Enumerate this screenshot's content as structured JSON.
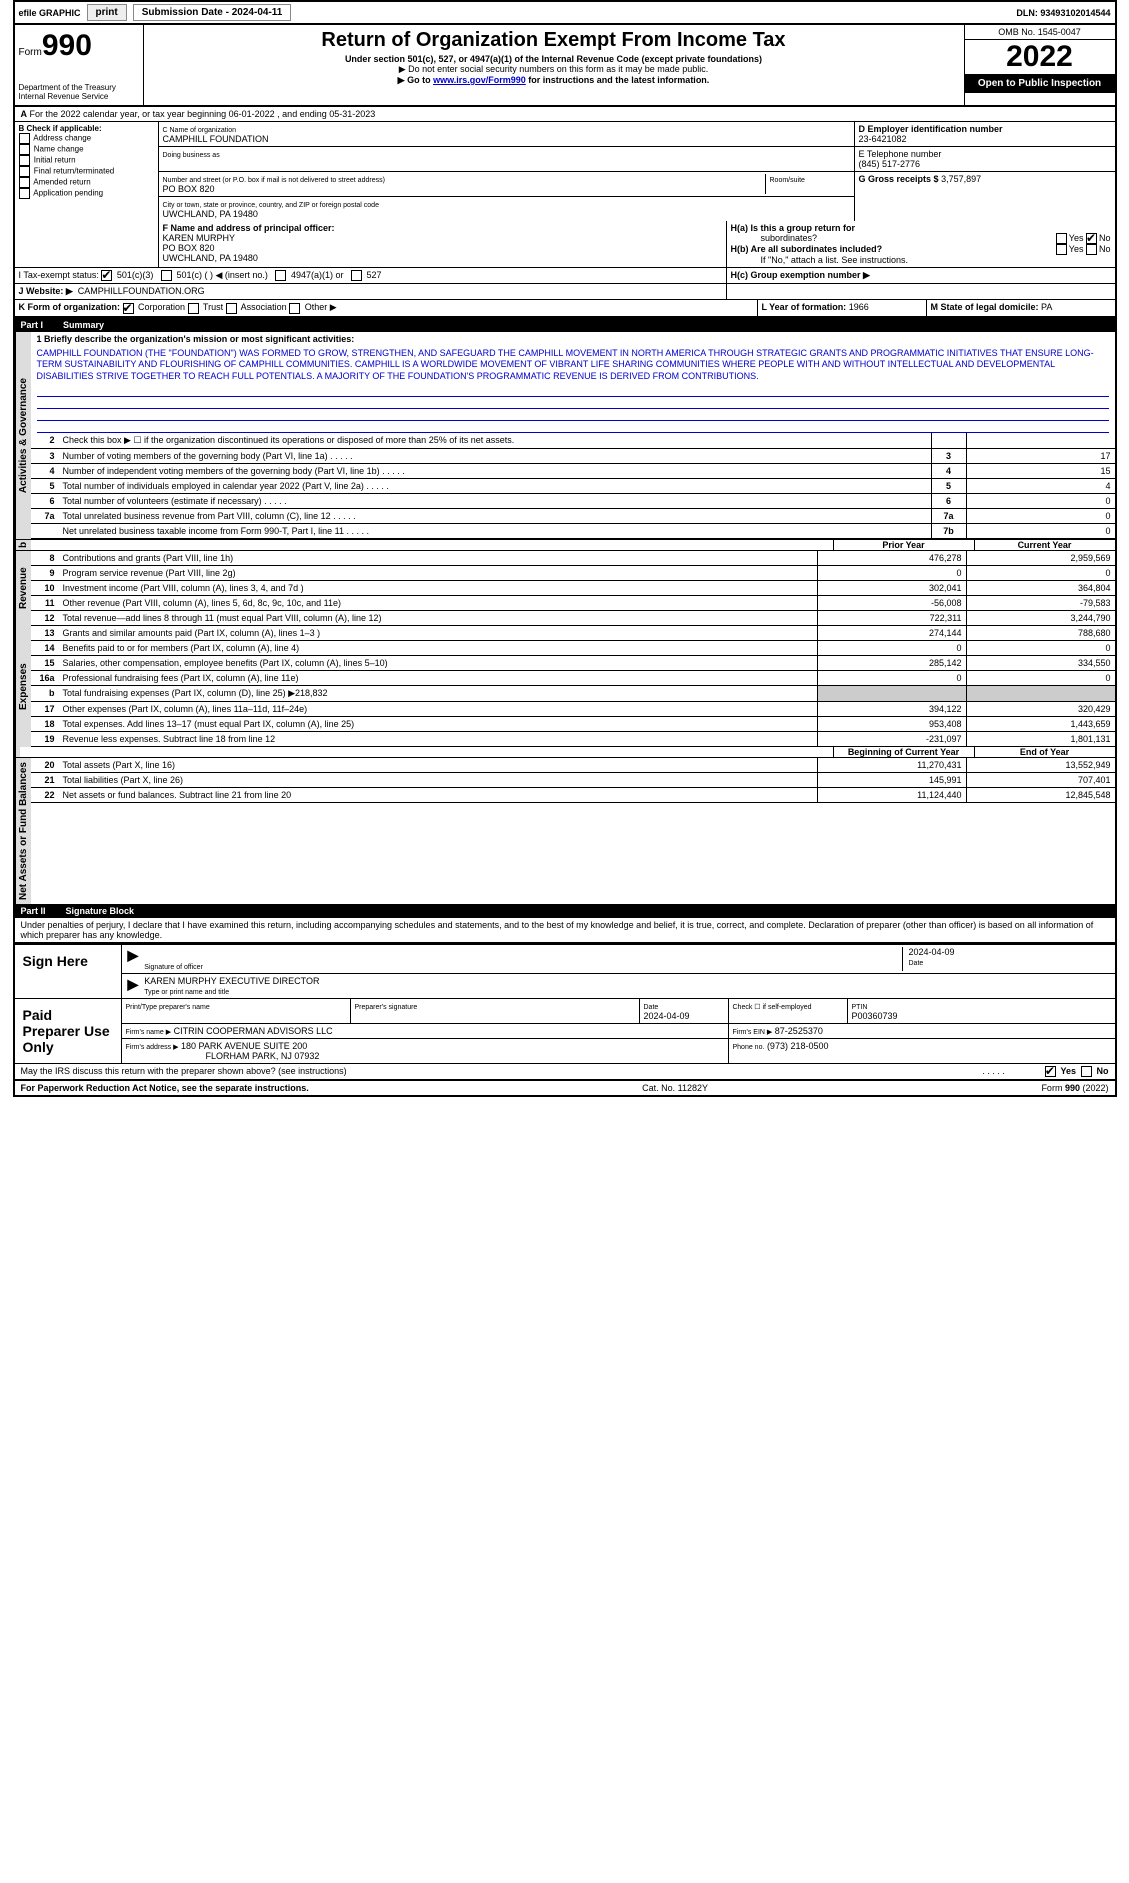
{
  "topbar": {
    "efile": "efile GRAPHIC",
    "print": "print",
    "subdate_label": "Submission Date - 2024-04-11",
    "dln": "DLN: 93493102014544"
  },
  "header": {
    "form_prefix": "Form",
    "form_number": "990",
    "dept": "Department of the Treasury",
    "irs": "Internal Revenue Service",
    "title": "Return of Organization Exempt From Income Tax",
    "subtitle": "Under section 501(c), 527, or 4947(a)(1) of the Internal Revenue Code (except private foundations)",
    "note1": "▶ Do not enter social security numbers on this form as it may be made public.",
    "note2_pre": "▶ Go to ",
    "note2_link": "www.irs.gov/Form990",
    "note2_post": " for instructions and the latest information.",
    "omb": "OMB No. 1545-0047",
    "year": "2022",
    "inspection": "Open to Public Inspection"
  },
  "sectionA": "For the 2022 calendar year, or tax year beginning 06-01-2022   , and ending 05-31-2023",
  "sectionB": {
    "label": "B Check if applicable:",
    "items": [
      "Address change",
      "Name change",
      "Initial return",
      "Final return/terminated",
      "Amended return",
      "Application pending"
    ]
  },
  "sectionC": {
    "name_lbl": "C Name of organization",
    "name": "CAMPHILL FOUNDATION",
    "dba_lbl": "Doing business as",
    "addr_lbl": "Number and street (or P.O. box if mail is not delivered to street address)",
    "addr": "PO BOX 820",
    "room_lbl": "Room/suite",
    "city_lbl": "City or town, state or province, country, and ZIP or foreign postal code",
    "city": "UWCHLAND, PA  19480"
  },
  "sectionD": {
    "lbl": "D Employer identification number",
    "val": "23-6421082"
  },
  "sectionE": {
    "lbl": "E Telephone number",
    "val": "(845) 517-2776"
  },
  "sectionG": {
    "lbl": "G Gross receipts $",
    "val": "3,757,897"
  },
  "sectionF": {
    "lbl": "F  Name and address of principal officer:",
    "name": "KAREN MURPHY",
    "addr1": "PO BOX 820",
    "addr2": "UWCHLAND, PA  19480"
  },
  "sectionH": {
    "a": "H(a)  Is this a group return for",
    "a2": "subordinates?",
    "b": "H(b)  Are all subordinates included?",
    "b2": "If \"No,\" attach a list. See instructions.",
    "c": "H(c)  Group exemption number ▶",
    "yes": "Yes",
    "no": "No"
  },
  "sectionI": {
    "lbl": "I   Tax-exempt status:",
    "opts": [
      "501(c)(3)",
      "501(c) (  ) ◀ (insert no.)",
      "4947(a)(1) or",
      "527"
    ]
  },
  "sectionJ": {
    "lbl": "J   Website: ▶",
    "val": "CAMPHILLFOUNDATION.ORG"
  },
  "sectionK": "K Form of organization:",
  "sectionK_opts": [
    "Corporation",
    "Trust",
    "Association",
    "Other ▶"
  ],
  "sectionL": {
    "lbl": "L Year of formation:",
    "val": "1966"
  },
  "sectionM": {
    "lbl": "M State of legal domicile:",
    "val": "PA"
  },
  "part1": {
    "label": "Part I",
    "title": "Summary"
  },
  "mission_lbl": "1   Briefly describe the organization's mission or most significant activities:",
  "mission": "CAMPHILL FOUNDATION (THE \"FOUNDATION\") WAS FORMED TO GROW, STRENGTHEN, AND SAFEGUARD THE CAMPHILL MOVEMENT IN NORTH AMERICA THROUGH STRATEGIC GRANTS AND PROGRAMMATIC INITIATIVES THAT ENSURE LONG-TERM SUSTAINABILITY AND FLOURISHING OF CAMPHILL COMMUNITIES. CAMPHILL IS A WORLDWIDE MOVEMENT OF VIBRANT LIFE SHARING COMMUNITIES WHERE PEOPLE WITH AND WITHOUT INTELLECTUAL AND DEVELOPMENTAL DISABILITIES STRIVE TOGETHER TO REACH FULL POTENTIALS. A MAJORITY OF THE FOUNDATION'S PROGRAMMATIC REVENUE IS DERIVED FROM CONTRIBUTIONS.",
  "gov_rows": [
    {
      "n": "2",
      "d": "Check this box ▶ ☐ if the organization discontinued its operations or disposed of more than 25% of its net assets.",
      "b": "",
      "v": ""
    },
    {
      "n": "3",
      "d": "Number of voting members of the governing body (Part VI, line 1a)",
      "b": "3",
      "v": "17"
    },
    {
      "n": "4",
      "d": "Number of independent voting members of the governing body (Part VI, line 1b)",
      "b": "4",
      "v": "15"
    },
    {
      "n": "5",
      "d": "Total number of individuals employed in calendar year 2022 (Part V, line 2a)",
      "b": "5",
      "v": "4"
    },
    {
      "n": "6",
      "d": "Total number of volunteers (estimate if necessary)",
      "b": "6",
      "v": "0"
    },
    {
      "n": "7a",
      "d": "Total unrelated business revenue from Part VIII, column (C), line 12",
      "b": "7a",
      "v": "0"
    },
    {
      "n": "",
      "d": "Net unrelated business taxable income from Form 990-T, Part I, line 11",
      "b": "7b",
      "v": "0"
    }
  ],
  "col_headers": {
    "b": "b",
    "prior": "Prior Year",
    "current": "Current Year"
  },
  "rev_rows": [
    {
      "n": "8",
      "d": "Contributions and grants (Part VIII, line 1h)",
      "p": "476,278",
      "c": "2,959,569"
    },
    {
      "n": "9",
      "d": "Program service revenue (Part VIII, line 2g)",
      "p": "0",
      "c": "0"
    },
    {
      "n": "10",
      "d": "Investment income (Part VIII, column (A), lines 3, 4, and 7d )",
      "p": "302,041",
      "c": "364,804"
    },
    {
      "n": "11",
      "d": "Other revenue (Part VIII, column (A), lines 5, 6d, 8c, 9c, 10c, and 11e)",
      "p": "-56,008",
      "c": "-79,583"
    },
    {
      "n": "12",
      "d": "Total revenue—add lines 8 through 11 (must equal Part VIII, column (A), line 12)",
      "p": "722,311",
      "c": "3,244,790"
    }
  ],
  "exp_rows": [
    {
      "n": "13",
      "d": "Grants and similar amounts paid (Part IX, column (A), lines 1–3 )",
      "p": "274,144",
      "c": "788,680"
    },
    {
      "n": "14",
      "d": "Benefits paid to or for members (Part IX, column (A), line 4)",
      "p": "0",
      "c": "0"
    },
    {
      "n": "15",
      "d": "Salaries, other compensation, employee benefits (Part IX, column (A), lines 5–10)",
      "p": "285,142",
      "c": "334,550"
    },
    {
      "n": "16a",
      "d": "Professional fundraising fees (Part IX, column (A), line 11e)",
      "p": "0",
      "c": "0"
    },
    {
      "n": "b",
      "d": "Total fundraising expenses (Part IX, column (D), line 25) ▶218,832",
      "p": "SHADE",
      "c": "SHADE"
    },
    {
      "n": "17",
      "d": "Other expenses (Part IX, column (A), lines 11a–11d, 11f–24e)",
      "p": "394,122",
      "c": "320,429"
    },
    {
      "n": "18",
      "d": "Total expenses. Add lines 13–17 (must equal Part IX, column (A), line 25)",
      "p": "953,408",
      "c": "1,443,659"
    },
    {
      "n": "19",
      "d": "Revenue less expenses. Subtract line 18 from line 12",
      "p": "-231,097",
      "c": "1,801,131"
    }
  ],
  "na_headers": {
    "begin": "Beginning of Current Year",
    "end": "End of Year"
  },
  "na_rows": [
    {
      "n": "20",
      "d": "Total assets (Part X, line 16)",
      "p": "11,270,431",
      "c": "13,552,949"
    },
    {
      "n": "21",
      "d": "Total liabilities (Part X, line 26)",
      "p": "145,991",
      "c": "707,401"
    },
    {
      "n": "22",
      "d": "Net assets or fund balances. Subtract line 21 from line 20",
      "p": "11,124,440",
      "c": "12,845,548"
    }
  ],
  "part2": {
    "label": "Part II",
    "title": "Signature Block"
  },
  "perjury": "Under penalties of perjury, I declare that I have examined this return, including accompanying schedules and statements, and to the best of my knowledge and belief, it is true, correct, and complete. Declaration of preparer (other than officer) is based on all information of which preparer has any knowledge.",
  "sign": {
    "here": "Sign Here",
    "officer_lbl": "Signature of officer",
    "date_lbl": "Date",
    "date": "2024-04-09",
    "name": "KAREN MURPHY EXECUTIVE DIRECTOR",
    "name_lbl": "Type or print name and title"
  },
  "paid": {
    "label": "Paid Preparer Use Only",
    "prep_name_lbl": "Print/Type preparer's name",
    "prep_sig_lbl": "Preparer's signature",
    "date_lbl": "Date",
    "date": "2024-04-09",
    "check_lbl": "Check ☐ if self-employed",
    "ptin_lbl": "PTIN",
    "ptin": "P00360739",
    "firm_name_lbl": "Firm's name    ▶",
    "firm_name": "CITRIN COOPERMAN ADVISORS LLC",
    "firm_ein_lbl": "Firm's EIN ▶",
    "firm_ein": "87-2525370",
    "firm_addr_lbl": "Firm's address ▶",
    "firm_addr1": "180 PARK AVENUE SUITE 200",
    "firm_addr2": "FLORHAM PARK, NJ  07932",
    "phone_lbl": "Phone no.",
    "phone": "(973) 218-0500"
  },
  "discuss": "May the IRS discuss this return with the preparer shown above? (see instructions)",
  "footer": {
    "left": "For Paperwork Reduction Act Notice, see the separate instructions.",
    "mid": "Cat. No. 11282Y",
    "right": "Form 990 (2022)"
  },
  "vert": {
    "gov": "Activities & Governance",
    "rev": "Revenue",
    "exp": "Expenses",
    "na": "Net Assets or Fund Balances"
  }
}
